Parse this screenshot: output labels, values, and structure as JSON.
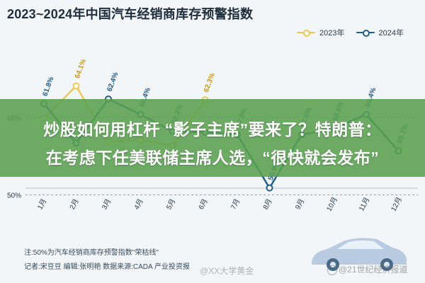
{
  "header": {
    "title": "2023~2024年中国汽车经销商库存预警指数"
  },
  "overlay": {
    "line1": "炒股如何用杠杆 “影子主席”要来了？特朗普：",
    "line2": "在考虑下任美联储主席人选，“很快就会发布”"
  },
  "footer": {
    "note": "注:50%为汽车经销商库存预警指数\"荣枯线\"",
    "credit": "记者:宋豆豆    编辑:张明艳    数据来源:CADA    产业投资报",
    "watermark_left": "@XX大学黄金",
    "watermark_right": "@21世纪经济报道"
  },
  "colors": {
    "series_2023": "#f0c850",
    "series_2024": "#1f5c8c",
    "grid": "#8aa0b4",
    "overlay": "#5aa050"
  },
  "chart_data": {
    "type": "line",
    "categories": [
      "1月",
      "2月",
      "3月",
      "4月",
      "5月",
      "6月",
      "7月",
      "8月",
      "9月",
      "10月",
      "11月",
      "12月"
    ],
    "series": [
      {
        "name": "2023年",
        "values": [
          59.9,
          64.1,
          56.9,
          57.1,
          56.4,
          62.3,
          null,
          null,
          null,
          null,
          null,
          null
        ],
        "labels": [
          "",
          "64.1%",
          "",
          "",
          "",
          "62.3%",
          "",
          "",
          "",
          "",
          "",
          ""
        ]
      },
      {
        "name": "2024年",
        "values": [
          61.8,
          56.7,
          62.4,
          60.4,
          58.2,
          58.1,
          57.8,
          50.9,
          57.8,
          58.6,
          60.4,
          55.7
        ],
        "labels": [
          "61.8%",
          "",
          "62.4%",
          "60.4%",
          "58.2%",
          "",
          "57.8%",
          "50.9%",
          "57.8%",
          "58.6%",
          "60.4%",
          "55.7%"
        ]
      }
    ],
    "yticks": [
      "50%",
      "60%"
    ],
    "ylim": [
      45,
      69
    ],
    "grid": true,
    "legend": "top-right"
  }
}
